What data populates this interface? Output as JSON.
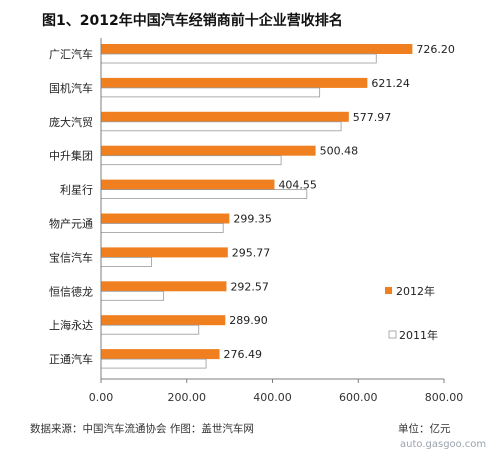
{
  "chart_data": {
    "type": "bar",
    "orientation": "horizontal",
    "title": "图1、2012年中国汽车经销商前十企业营收排名",
    "categories": [
      "广汇汽车",
      "国机汽车",
      "庞大汽贸",
      "中升集团",
      "利星行",
      "物产元通",
      "宝信汽车",
      "恒信德龙",
      "上海永达",
      "正通汽车"
    ],
    "series": [
      {
        "name": "2012年",
        "values": [
          726.2,
          621.24,
          577.97,
          500.48,
          404.55,
          299.35,
          295.77,
          292.57,
          289.9,
          276.49
        ]
      },
      {
        "name": "2011年",
        "values": [
          642,
          510,
          560,
          420,
          480,
          285,
          118,
          146,
          228,
          245
        ]
      }
    ],
    "data_labels": [
      "726.20",
      "621.24",
      "577.97",
      "500.48",
      "404.55",
      "299.35",
      "295.77",
      "292.57",
      "289.90",
      "276.49"
    ],
    "xlim": [
      0,
      800
    ],
    "xticks": [
      "0.00",
      "200.00",
      "400.00",
      "600.00",
      "800.00"
    ],
    "xlabel": "",
    "ylabel": "",
    "grid": false,
    "legend_position": "right",
    "unit_label": "单位：亿元",
    "colors": {
      "2012年": "#f07f1f",
      "2011年": "#ffffff",
      "outline": "#9a9a9a",
      "axis": "#7f7f7f"
    }
  },
  "footer": {
    "source": "数据来源：中国汽车流通协会  作图：盖世汽车网",
    "watermark": "auto.gasgoo.com"
  }
}
